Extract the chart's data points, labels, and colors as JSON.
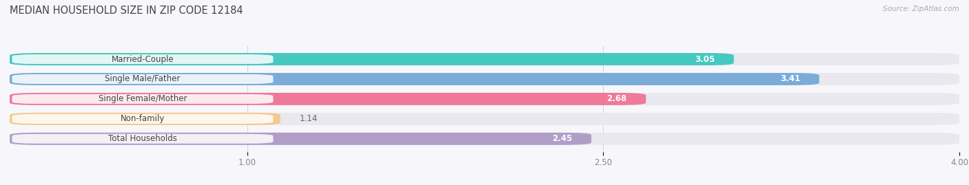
{
  "title": "MEDIAN HOUSEHOLD SIZE IN ZIP CODE 12184",
  "source": "Source: ZipAtlas.com",
  "categories": [
    "Married-Couple",
    "Single Male/Father",
    "Single Female/Mother",
    "Non-family",
    "Total Households"
  ],
  "values": [
    3.05,
    3.41,
    2.68,
    1.14,
    2.45
  ],
  "bar_colors": [
    "#44c8c0",
    "#7bacd8",
    "#f07898",
    "#f5c98a",
    "#b09ec8"
  ],
  "bar_bg_color": "#e8e8ee",
  "xlim_min": 0.0,
  "xlim_max": 4.0,
  "data_min": 1.0,
  "data_max": 4.0,
  "xticks": [
    1.0,
    2.5,
    4.0
  ],
  "xtick_labels": [
    "1.00",
    "2.50",
    "4.00"
  ],
  "title_fontsize": 10.5,
  "label_fontsize": 8.5,
  "value_fontsize": 8.5,
  "bar_height": 0.62,
  "label_color": "#444444",
  "value_color_inside": "#ffffff",
  "value_color_outside": "#666666",
  "background_color": "#f7f7fb",
  "bar_gap": 0.18,
  "pill_color": "#ffffff",
  "pill_alpha": 0.85
}
